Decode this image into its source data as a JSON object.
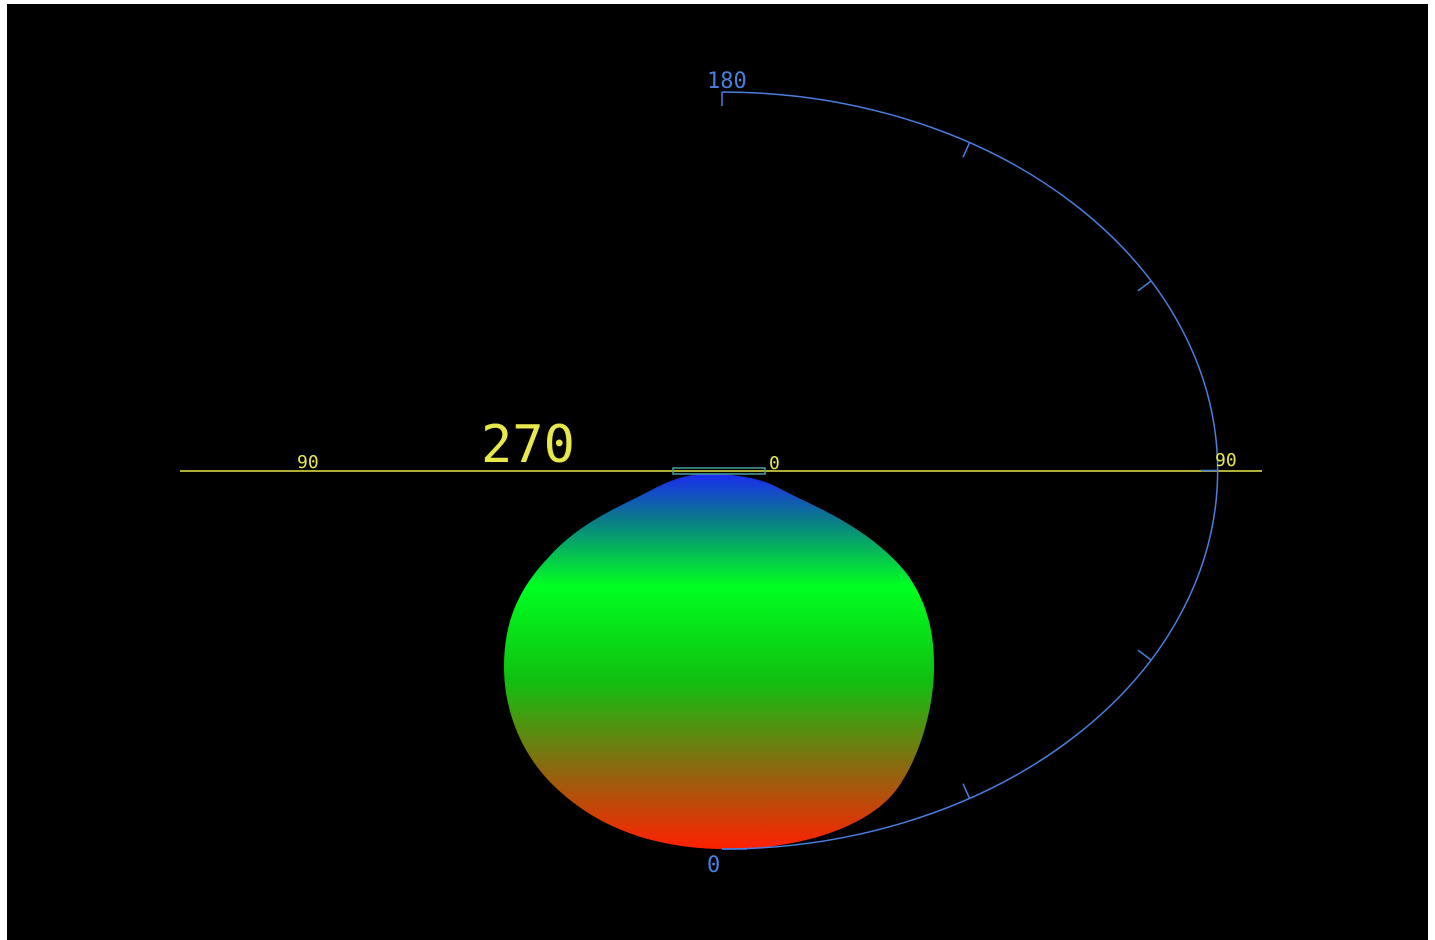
{
  "diagram": {
    "view_angle_label": "270",
    "horizontal_axis": {
      "left_label": "90",
      "center_label": "0",
      "right_label": "90"
    },
    "vertical_arc": {
      "top_label": "180",
      "bottom_label": "0"
    },
    "colors": {
      "background": "#000000",
      "axis_line": "#e8e84a",
      "arc_line": "#4a7fe0",
      "gradient": [
        "#1030e0",
        "#00ff20",
        "#00e010",
        "#c03010",
        "#ff2000"
      ]
    }
  }
}
